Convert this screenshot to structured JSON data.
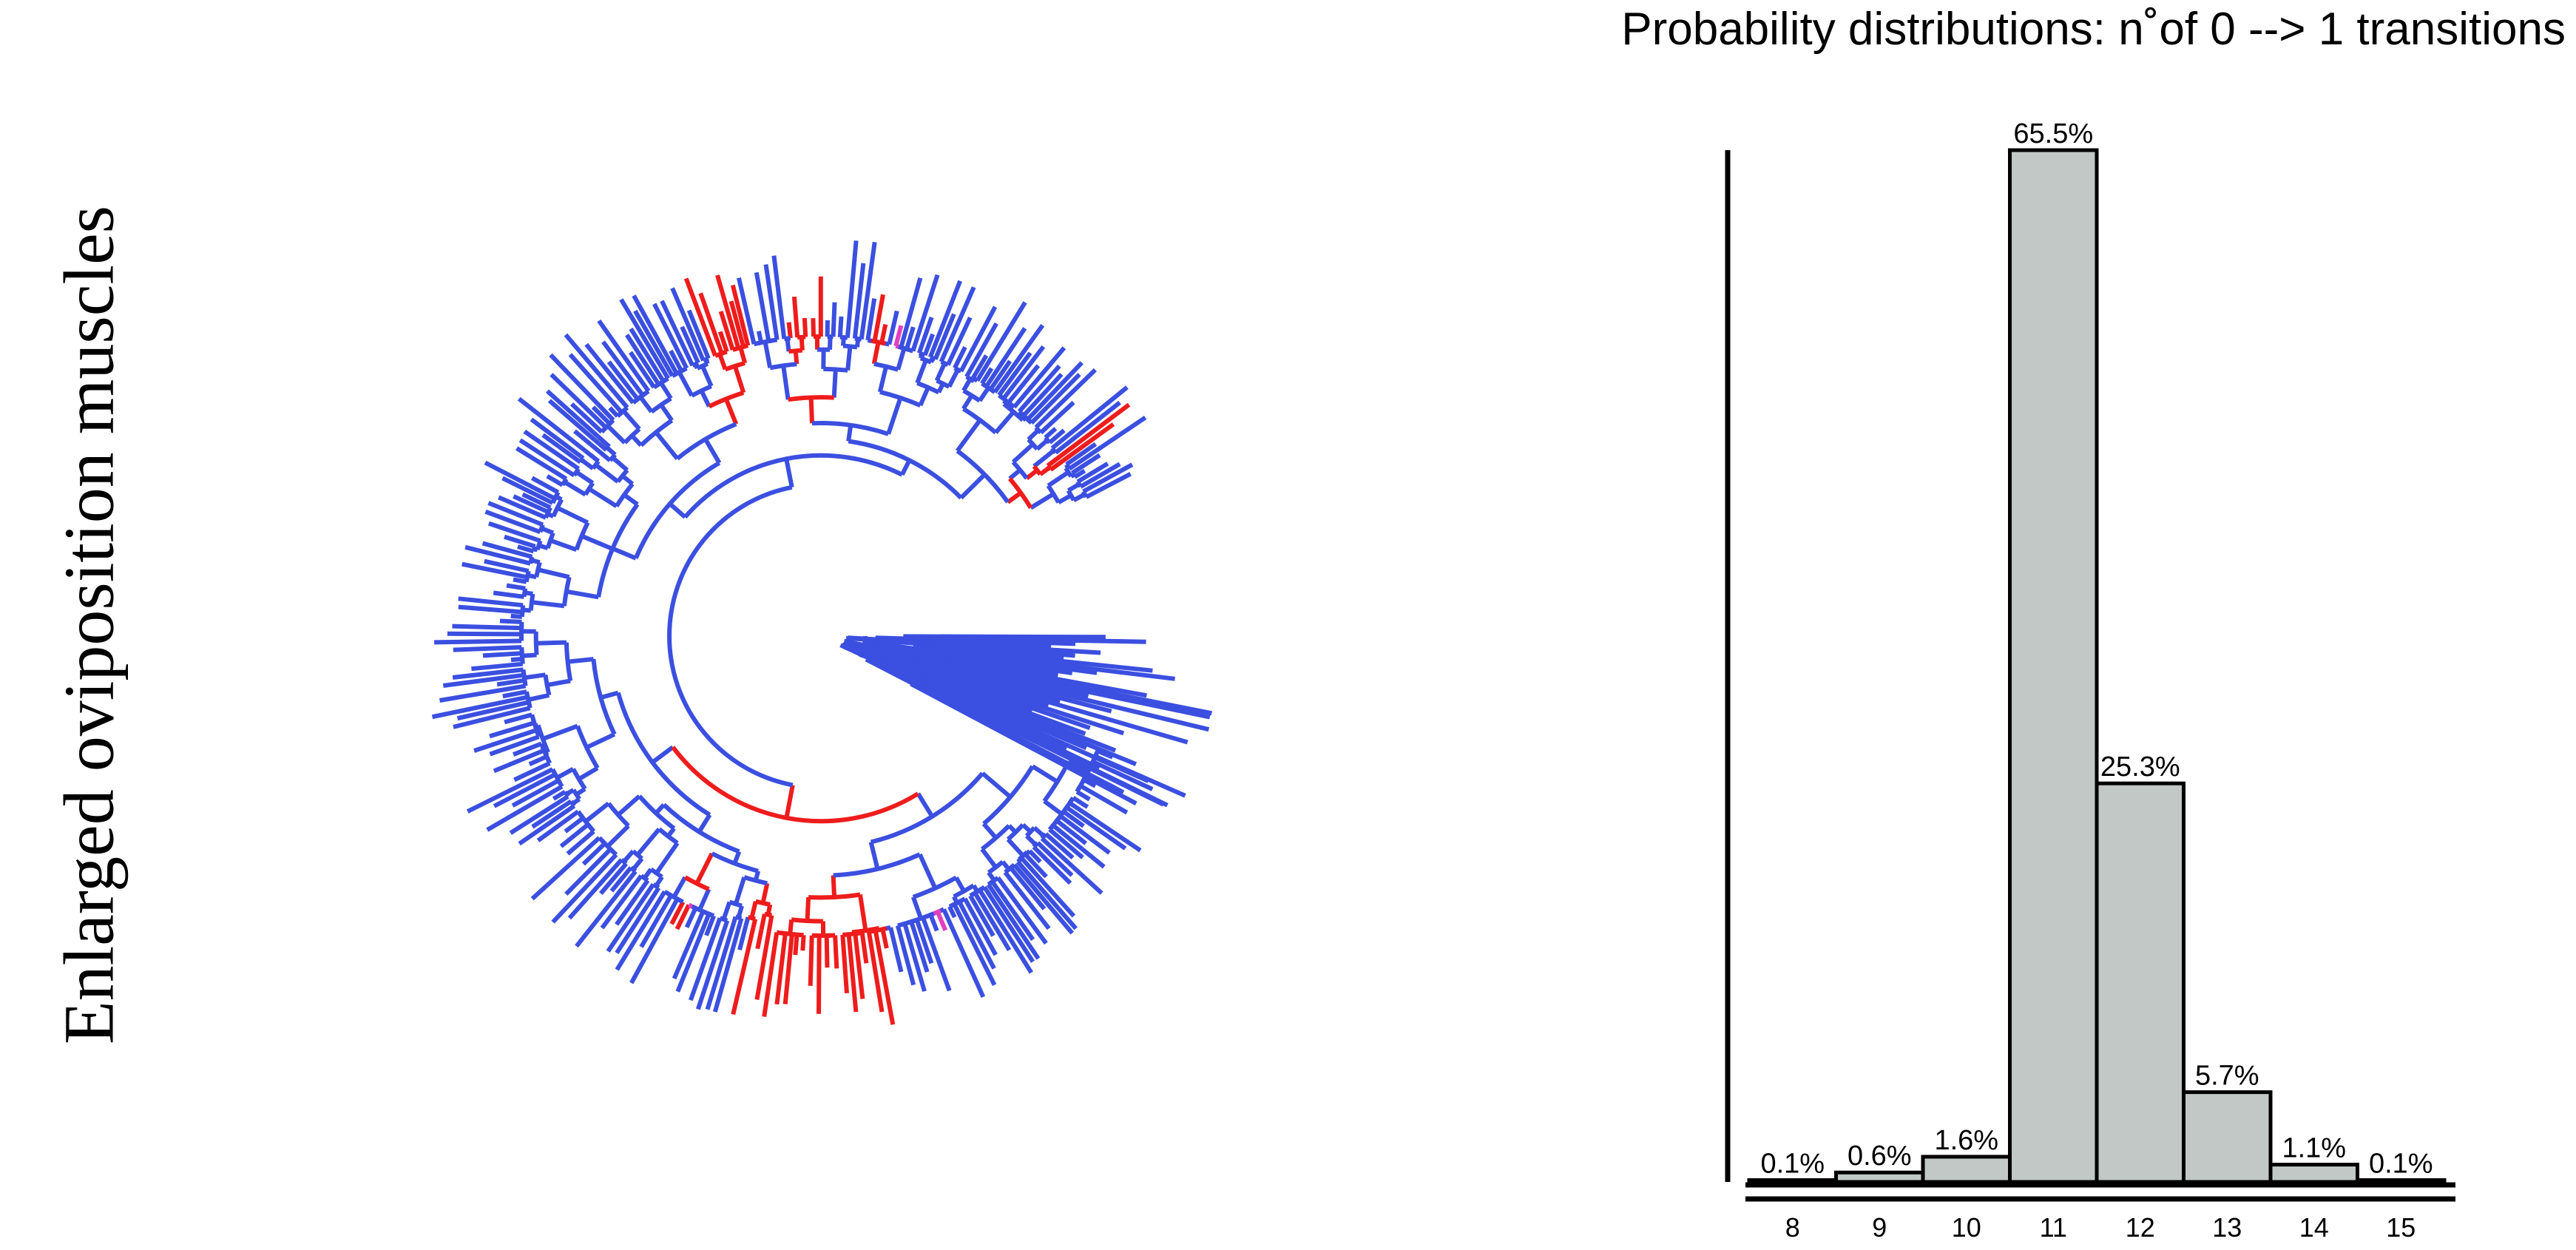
{
  "figure": {
    "side_label": "Enlarged oviposition muscles",
    "tree_colors": {
      "absent": "#3b4fe0",
      "present": "#ee1c1c",
      "transition": "#e040c0"
    }
  },
  "chart_data": {
    "type": "bar",
    "title": "Probability distributions: n˚of 0 --> 1 transitions",
    "xlabel": "",
    "ylabel": "",
    "categories": [
      "8",
      "9",
      "10",
      "11",
      "12",
      "13",
      "14",
      "15"
    ],
    "values": [
      0.1,
      0.6,
      1.6,
      65.5,
      25.3,
      5.7,
      1.1,
      0.1
    ],
    "value_labels": [
      "0.1%",
      "0.6%",
      "1.6%",
      "65.5%",
      "25.3%",
      "5.7%",
      "1.1%",
      "0.1%"
    ],
    "ylim": [
      0,
      65.5
    ],
    "bar_color": "#c1c8c6",
    "grid": false
  }
}
